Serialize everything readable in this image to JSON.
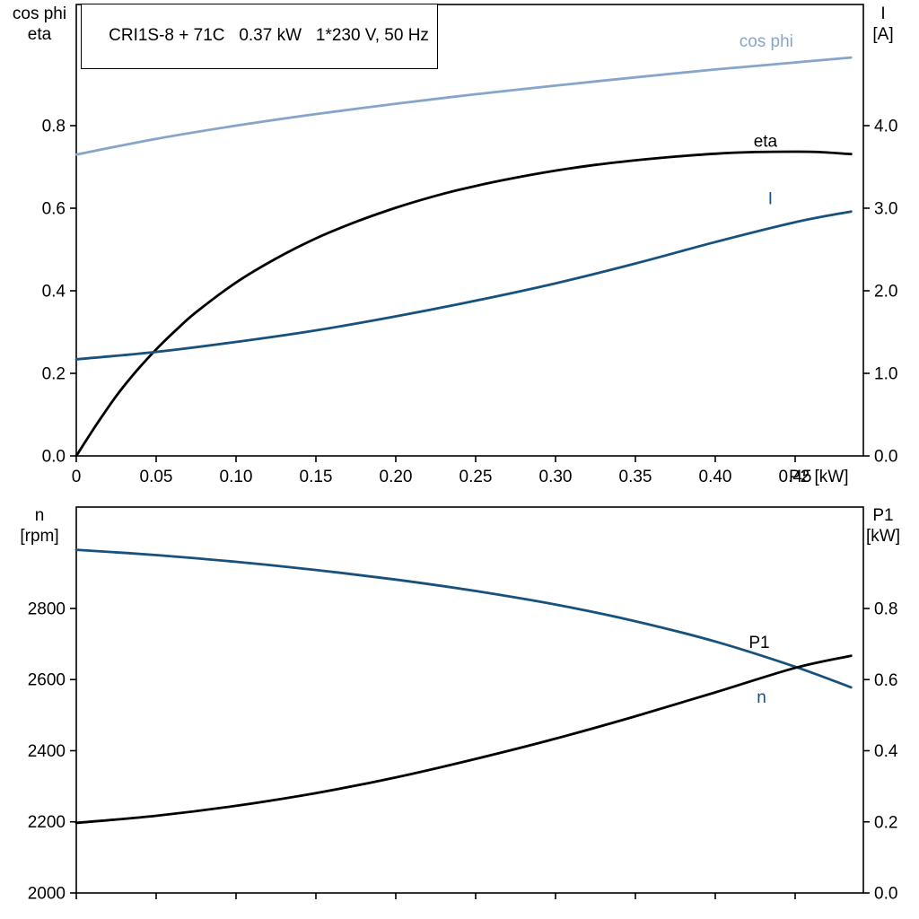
{
  "title": {
    "model": "CRI1S-8 + 71C",
    "power": "0.37 kW",
    "supply": "1*230 V, 50 Hz",
    "text": "CRI1S-8 + 71C   0.37 kW   1*230 V, 50 Hz"
  },
  "colors": {
    "light_blue": "#87a5c8",
    "dark_blue": "#17517e",
    "black": "#000000"
  },
  "chart_data": [
    {
      "type": "line",
      "name": "motor-performance-top",
      "x_axis": {
        "label": "P2 [kW]",
        "range": [
          0,
          0.4927
        ],
        "tick_values": [
          0,
          0.05,
          0.1,
          0.15,
          0.2,
          0.25,
          0.3,
          0.35,
          0.4,
          0.45
        ],
        "tick_labels": [
          "0",
          "0.05",
          "0.10",
          "0.15",
          "0.20",
          "0.25",
          "0.30",
          "0.35",
          "0.40",
          "0.45"
        ],
        "show_tick_labels": true
      },
      "left_axis": {
        "label_lines": [
          "cos phi",
          "eta"
        ],
        "range": [
          0,
          1.0935
        ],
        "tick_values": [
          0.0,
          0.2,
          0.4,
          0.6,
          0.8
        ],
        "tick_labels": [
          "0.0",
          "0.2",
          "0.4",
          "0.6",
          "0.8"
        ]
      },
      "right_axis": {
        "label_lines": [
          "I",
          "[A]"
        ],
        "range": [
          0,
          5.467
        ],
        "tick_values": [
          0.0,
          1.0,
          2.0,
          3.0,
          4.0
        ],
        "tick_labels": [
          "0.0",
          "1.0",
          "2.0",
          "3.0",
          "4.0"
        ]
      },
      "series": [
        {
          "key": "cos-phi",
          "name": "cos phi",
          "axis": "left",
          "color": "light_blue",
          "label": {
            "text": "cos phi",
            "x": 0.415,
            "v": 1.005
          },
          "x": [
            0,
            0.05,
            0.1,
            0.15,
            0.2,
            0.25,
            0.3,
            0.35,
            0.4,
            0.45,
            0.485
          ],
          "v": [
            0.73,
            0.768,
            0.8,
            0.828,
            0.853,
            0.876,
            0.897,
            0.917,
            0.936,
            0.953,
            0.965
          ]
        },
        {
          "key": "eta",
          "name": "eta",
          "axis": "left",
          "color": "black",
          "label": {
            "text": "eta",
            "x": 0.424,
            "v": 0.763
          },
          "x": [
            0,
            0.0125,
            0.025,
            0.0375,
            0.05,
            0.0625,
            0.075,
            0.1,
            0.125,
            0.15,
            0.175,
            0.2,
            0.225,
            0.25,
            0.275,
            0.3,
            0.325,
            0.35,
            0.375,
            0.4,
            0.425,
            0.45,
            0.465,
            0.485
          ],
          "v": [
            0,
            0.075,
            0.145,
            0.205,
            0.258,
            0.305,
            0.348,
            0.42,
            0.478,
            0.527,
            0.567,
            0.601,
            0.63,
            0.654,
            0.674,
            0.691,
            0.705,
            0.716,
            0.725,
            0.732,
            0.736,
            0.737,
            0.736,
            0.731
          ]
        },
        {
          "key": "current",
          "name": "I",
          "axis": "right",
          "color": "dark_blue",
          "label": {
            "text": "I",
            "x": 0.433,
            "v": 3.12
          },
          "x": [
            0,
            0.05,
            0.1,
            0.15,
            0.2,
            0.25,
            0.3,
            0.35,
            0.4,
            0.45,
            0.485
          ],
          "v": [
            1.17,
            1.26,
            1.38,
            1.52,
            1.69,
            1.88,
            2.09,
            2.33,
            2.59,
            2.83,
            2.96
          ]
        }
      ]
    },
    {
      "type": "line",
      "name": "motor-performance-bottom",
      "x_axis": {
        "label": "",
        "range": [
          0,
          0.4927
        ],
        "tick_values": [
          0,
          0.05,
          0.1,
          0.15,
          0.2,
          0.25,
          0.3,
          0.35,
          0.4,
          0.45
        ],
        "tick_labels": [
          "0",
          "0.05",
          "0.10",
          "0.15",
          "0.20",
          "0.25",
          "0.30",
          "0.35",
          "0.40",
          "0.45"
        ],
        "show_tick_labels": false
      },
      "left_axis": {
        "label_lines": [
          "n",
          "[rpm]"
        ],
        "range": [
          2000,
          3085
        ],
        "tick_values": [
          2000,
          2200,
          2400,
          2600,
          2800
        ],
        "tick_labels": [
          "2000",
          "2200",
          "2400",
          "2600",
          "2800"
        ]
      },
      "right_axis": {
        "label_lines": [
          "P1",
          "[kW]"
        ],
        "range": [
          0,
          1.0852
        ],
        "tick_values": [
          0.0,
          0.2,
          0.4,
          0.6,
          0.8
        ],
        "tick_labels": [
          "0.0",
          "0.2",
          "0.4",
          "0.6",
          "0.8"
        ]
      },
      "series": [
        {
          "key": "speed",
          "name": "n",
          "axis": "left",
          "color": "dark_blue",
          "label": {
            "text": "n",
            "x": 0.426,
            "v": 2551
          },
          "x": [
            0,
            0.05,
            0.1,
            0.15,
            0.2,
            0.25,
            0.3,
            0.35,
            0.4,
            0.45,
            0.485
          ],
          "v": [
            2965,
            2950,
            2931,
            2908,
            2881,
            2849,
            2811,
            2764,
            2707,
            2636,
            2578
          ]
        },
        {
          "key": "p1",
          "name": "P1",
          "axis": "right",
          "color": "black",
          "label": {
            "text": "P1",
            "x": 0.421,
            "v": 0.705
          },
          "x": [
            0,
            0.05,
            0.1,
            0.15,
            0.2,
            0.25,
            0.3,
            0.35,
            0.4,
            0.45,
            0.485
          ],
          "v": [
            0.197,
            0.217,
            0.245,
            0.281,
            0.325,
            0.377,
            0.434,
            0.497,
            0.564,
            0.633,
            0.667
          ]
        }
      ]
    }
  ]
}
